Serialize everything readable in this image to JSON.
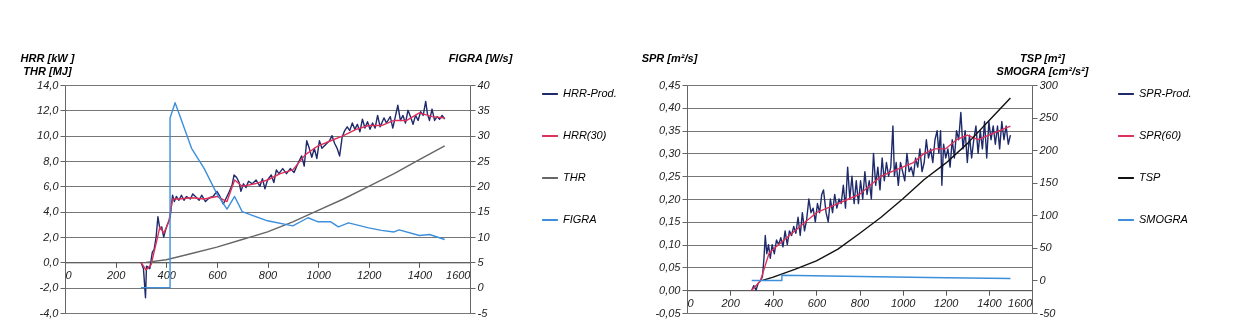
{
  "chart_data": [
    {
      "type": "line",
      "ylabel": "HRR [kW ]\nTHR [MJ]",
      "y2label": "FIGRA [W/s]",
      "xlim": [
        0,
        1600
      ],
      "xticks": [
        0,
        200,
        400,
        600,
        800,
        1000,
        1200,
        1400,
        1600
      ],
      "ylim": [
        -4,
        14
      ],
      "yticks": [
        {
          "value": -4,
          "label": "-4,0"
        },
        {
          "value": -2,
          "label": "-2,0"
        },
        {
          "value": 0,
          "label": "0,0"
        },
        {
          "value": 2,
          "label": "2,0"
        },
        {
          "value": 4,
          "label": "4,0"
        },
        {
          "value": 6,
          "label": "6,0"
        },
        {
          "value": 8,
          "label": "8,0"
        },
        {
          "value": 10,
          "label": "10,0"
        },
        {
          "value": 12,
          "label": "12,0"
        },
        {
          "value": 14,
          "label": "14,0"
        }
      ],
      "y2lim": [
        -5,
        40
      ],
      "y2ticks": [
        -5,
        0,
        5,
        10,
        15,
        20,
        25,
        30,
        35,
        40
      ],
      "grid": "y",
      "legend": "right",
      "marker": "none",
      "series": [
        {
          "name": "HRR-Prod.",
          "color": "#1f2a6b",
          "x": [
            300,
            310,
            318,
            322,
            335,
            345,
            352,
            360,
            367,
            375,
            382,
            390,
            398,
            405,
            415,
            425,
            432,
            440,
            450,
            460,
            470,
            480,
            495,
            505,
            520,
            530,
            540,
            555,
            570,
            585,
            600,
            612,
            625,
            635,
            645,
            660,
            668,
            678,
            688,
            695,
            705,
            715,
            725,
            740,
            755,
            770,
            780,
            790,
            800,
            815,
            825,
            835,
            845,
            860,
            875,
            890,
            905,
            920,
            935,
            945,
            955,
            965,
            975,
            985,
            995,
            1005,
            1015,
            1030,
            1045,
            1055,
            1065,
            1075,
            1085,
            1095,
            1105,
            1115,
            1125,
            1135,
            1145,
            1155,
            1165,
            1175,
            1185,
            1195,
            1205,
            1215,
            1225,
            1235,
            1245,
            1260,
            1270,
            1285,
            1295,
            1305,
            1315,
            1325,
            1335,
            1345,
            1355,
            1365,
            1375,
            1385,
            1395,
            1405,
            1415,
            1425,
            1432,
            1440,
            1450,
            1460,
            1470,
            1480,
            1490,
            1500
          ],
          "values": [
            0,
            -0.5,
            -2.8,
            -0.3,
            -0.5,
            0.8,
            1.0,
            2.0,
            3.6,
            2.6,
            2.8,
            2.0,
            2.6,
            3.0,
            3.5,
            5.3,
            4.8,
            5.2,
            4.9,
            5.3,
            4.9,
            5.2,
            5.0,
            5.4,
            5.1,
            4.9,
            5.3,
            4.8,
            5.1,
            5.2,
            5.6,
            5.2,
            4.6,
            5.0,
            5.4,
            6.1,
            6.9,
            6.7,
            6.3,
            5.6,
            6.2,
            5.9,
            6.4,
            6.2,
            6.5,
            6.0,
            6.6,
            5.8,
            6.5,
            6.9,
            6.3,
            7.3,
            7.0,
            7.4,
            7.0,
            7.4,
            7.1,
            7.8,
            8.4,
            7.6,
            9.6,
            9.0,
            8.3,
            9.0,
            8.2,
            9.6,
            9.0,
            9.3,
            9.6,
            10.0,
            9.4,
            9.0,
            8.4,
            9.9,
            10.4,
            10.7,
            10.4,
            11.0,
            10.5,
            10.9,
            10.3,
            11.3,
            10.6,
            11.1,
            10.5,
            11.0,
            10.6,
            11.6,
            10.7,
            11.4,
            11.0,
            11.5,
            10.6,
            11.5,
            12.4,
            11.2,
            11.6,
            11.0,
            12.0,
            11.5,
            10.9,
            11.6,
            11.2,
            11.9,
            11.6,
            12.7,
            11.7,
            11.2,
            12.1,
            11.2,
            11.5,
            11.3,
            11.6,
            11.3
          ]
        },
        {
          "name": "HRR(30)",
          "color": "#e0305a",
          "x": [
            300,
            320,
            340,
            360,
            375,
            390,
            410,
            425,
            450,
            500,
            550,
            600,
            640,
            670,
            700,
            750,
            800,
            850,
            900,
            950,
            1000,
            1050,
            1100,
            1150,
            1200,
            1250,
            1300,
            1350,
            1400,
            1450,
            1500
          ],
          "values": [
            0,
            -0.6,
            -0.2,
            1.5,
            2.8,
            2.3,
            3.2,
            5.0,
            5.0,
            5.1,
            5.0,
            5.2,
            4.8,
            6.5,
            6.0,
            6.2,
            6.5,
            7.0,
            7.3,
            8.5,
            9.2,
            9.6,
            10.0,
            10.5,
            10.8,
            10.8,
            11.2,
            11.2,
            11.8,
            11.5,
            11.4
          ]
        },
        {
          "name": "THR",
          "color": "#666666",
          "x": [
            320,
            400,
            500,
            600,
            700,
            800,
            900,
            1000,
            1100,
            1200,
            1300,
            1400,
            1500
          ],
          "values": [
            0,
            0.2,
            0.7,
            1.2,
            1.8,
            2.4,
            3.2,
            4.1,
            5.0,
            6.0,
            7.0,
            8.1,
            9.2
          ]
        },
        {
          "name": "FIGRA",
          "color": "#3d8fdc",
          "axis": "y2",
          "x": [
            300,
            415,
            415,
            435,
            500,
            550,
            600,
            640,
            670,
            700,
            800,
            900,
            960,
            1000,
            1050,
            1080,
            1120,
            1200,
            1250,
            1300,
            1320,
            1400,
            1440,
            1500
          ],
          "values": [
            0,
            0,
            33.5,
            36.5,
            27.5,
            23.5,
            18.5,
            15.5,
            18,
            15,
            13.2,
            12.2,
            13.8,
            13,
            13,
            12,
            12.8,
            11.8,
            11.3,
            11,
            11.4,
            10.3,
            10.5,
            9.5
          ]
        }
      ]
    },
    {
      "type": "line",
      "ylabel": "SPR [m²/s]",
      "y2label": "TSP [m²]\nSMOGRA [cm²/s²]",
      "xlim": [
        0,
        1600
      ],
      "xticks": [
        0,
        200,
        400,
        600,
        800,
        1000,
        1200,
        1400,
        1600
      ],
      "ylim": [
        -0.05,
        0.45
      ],
      "yticks": [
        {
          "value": -0.05,
          "label": "-0,05"
        },
        {
          "value": 0,
          "label": "0,00"
        },
        {
          "value": 0.05,
          "label": "0,05"
        },
        {
          "value": 0.1,
          "label": "0,10"
        },
        {
          "value": 0.15,
          "label": "0,15"
        },
        {
          "value": 0.2,
          "label": "0,20"
        },
        {
          "value": 0.25,
          "label": "0,25"
        },
        {
          "value": 0.3,
          "label": "0,30"
        },
        {
          "value": 0.35,
          "label": "0,35"
        },
        {
          "value": 0.4,
          "label": "0,40"
        },
        {
          "value": 0.45,
          "label": "0,45"
        }
      ],
      "y2lim": [
        -50,
        300
      ],
      "y2ticks": [
        -50,
        0,
        50,
        100,
        150,
        200,
        250,
        300
      ],
      "grid": "y",
      "legend": "right",
      "marker": "none",
      "series": [
        {
          "name": "SPR-Prod.",
          "color": "#1f2a6b",
          "x": [
            300,
            310,
            320,
            330,
            340,
            350,
            357,
            363,
            370,
            378,
            386,
            395,
            405,
            415,
            425,
            435,
            445,
            455,
            465,
            475,
            485,
            495,
            505,
            515,
            525,
            535,
            545,
            555,
            565,
            575,
            585,
            595,
            605,
            615,
            625,
            633,
            645,
            655,
            665,
            675,
            685,
            695,
            705,
            715,
            725,
            735,
            745,
            755,
            765,
            775,
            785,
            795,
            805,
            815,
            825,
            835,
            845,
            855,
            865,
            875,
            885,
            895,
            905,
            915,
            925,
            935,
            945,
            955,
            962,
            970,
            980,
            990,
            1000,
            1010,
            1020,
            1030,
            1040,
            1050,
            1060,
            1070,
            1080,
            1090,
            1100,
            1110,
            1120,
            1130,
            1140,
            1150,
            1160,
            1168,
            1176,
            1182,
            1190,
            1200,
            1210,
            1220,
            1230,
            1240,
            1250,
            1260,
            1270,
            1280,
            1290,
            1300,
            1310,
            1320,
            1330,
            1340,
            1350,
            1360,
            1370,
            1380,
            1390,
            1400,
            1410,
            1420,
            1430,
            1440,
            1450,
            1460,
            1470,
            1480,
            1490,
            1500
          ],
          "values": [
            0,
            0.01,
            0.0,
            0.015,
            0.02,
            0.03,
            0.07,
            0.12,
            0.08,
            0.1,
            0.07,
            0.1,
            0.08,
            0.11,
            0.1,
            0.115,
            0.095,
            0.13,
            0.1,
            0.13,
            0.12,
            0.14,
            0.125,
            0.16,
            0.12,
            0.17,
            0.13,
            0.155,
            0.2,
            0.17,
            0.18,
            0.15,
            0.19,
            0.17,
            0.21,
            0.22,
            0.17,
            0.15,
            0.2,
            0.17,
            0.21,
            0.18,
            0.2,
            0.19,
            0.23,
            0.18,
            0.27,
            0.2,
            0.25,
            0.19,
            0.24,
            0.19,
            0.24,
            0.2,
            0.26,
            0.21,
            0.24,
            0.2,
            0.3,
            0.23,
            0.27,
            0.22,
            0.29,
            0.24,
            0.28,
            0.25,
            0.27,
            0.36,
            0.25,
            0.28,
            0.23,
            0.28,
            0.26,
            0.24,
            0.3,
            0.26,
            0.27,
            0.25,
            0.29,
            0.27,
            0.31,
            0.26,
            0.28,
            0.33,
            0.29,
            0.31,
            0.28,
            0.33,
            0.35,
            0.3,
            0.35,
            0.23,
            0.32,
            0.29,
            0.31,
            0.27,
            0.33,
            0.29,
            0.35,
            0.33,
            0.39,
            0.31,
            0.35,
            0.28,
            0.34,
            0.29,
            0.33,
            0.36,
            0.3,
            0.35,
            0.31,
            0.37,
            0.29,
            0.37,
            0.33,
            0.36,
            0.32,
            0.36,
            0.31,
            0.37,
            0.33,
            0.36,
            0.32,
            0.34
          ]
        },
        {
          "name": "SPR(60)",
          "color": "#e0305a",
          "x": [
            300,
            340,
            360,
            380,
            400,
            450,
            500,
            550,
            600,
            650,
            700,
            750,
            800,
            850,
            900,
            950,
            1000,
            1050,
            1100,
            1150,
            1200,
            1250,
            1300,
            1350,
            1400,
            1450,
            1500
          ],
          "values": [
            0,
            0.02,
            0.05,
            0.08,
            0.09,
            0.11,
            0.13,
            0.15,
            0.17,
            0.18,
            0.19,
            0.2,
            0.21,
            0.23,
            0.25,
            0.26,
            0.27,
            0.28,
            0.3,
            0.31,
            0.31,
            0.33,
            0.34,
            0.33,
            0.34,
            0.35,
            0.36
          ]
        },
        {
          "name": "TSP",
          "color": "#111111",
          "axis": "y2",
          "x": [
            350,
            400,
            500,
            600,
            700,
            800,
            900,
            1000,
            1100,
            1200,
            1300,
            1400,
            1500
          ],
          "values": [
            0,
            5,
            17,
            30,
            48,
            72,
            97,
            125,
            155,
            180,
            210,
            245,
            280
          ]
        },
        {
          "name": "SMOGRA",
          "color": "#3d8fdc",
          "axis": "y2",
          "x": [
            300,
            440,
            440,
            800,
            1200,
            1500
          ],
          "values": [
            0,
            0,
            8,
            6,
            4,
            3
          ]
        }
      ]
    }
  ]
}
